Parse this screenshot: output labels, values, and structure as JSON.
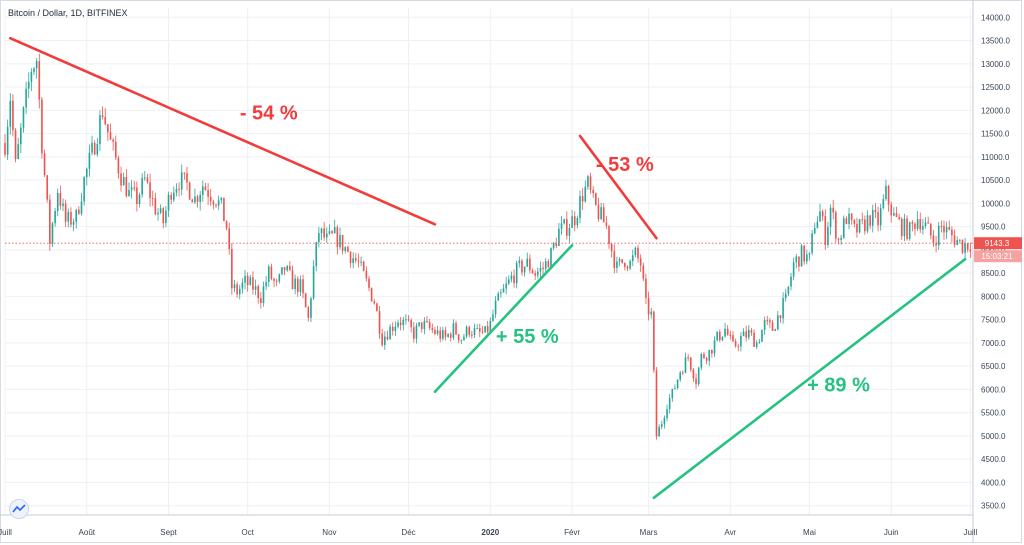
{
  "header": {
    "title": "Bitcoin / Dollar, 1D, BITFINEX"
  },
  "colors": {
    "up": "#26a69a",
    "down": "#ef5350",
    "decline": "#f23b3b",
    "rise": "#26c281",
    "axis": "#3b4656",
    "grid": "#eef0f3",
    "price_line": "#ef5350"
  },
  "price": {
    "last": "9143.3",
    "countdown": "15:03:21",
    "value": 9143.3
  },
  "icons": {
    "logo": "tradingview-logo-icon"
  },
  "chart_data": {
    "type": "candlestick",
    "title": "Bitcoin / Dollar, 1D, BITFINEX",
    "ylim": [
      3300,
      14200
    ],
    "yticks": [
      3500,
      4000,
      4500,
      5000,
      5500,
      6000,
      6500,
      7000,
      7500,
      8000,
      8500,
      9000,
      9500,
      10000,
      10500,
      11000,
      11500,
      12000,
      12500,
      13000,
      13500,
      14000
    ],
    "ytick_labels": [
      "3500.0",
      "4000.0",
      "4500.0",
      "5000.0",
      "5500.0",
      "6000.0",
      "6500.0",
      "7000.0",
      "7500.0",
      "8000.0",
      "8500.0",
      "9000.0",
      "9500.0",
      "10000.0",
      "10500.0",
      "11000.0",
      "11500.0",
      "12000.0",
      "12500.0",
      "13000.0",
      "13500.0",
      "14000.0"
    ],
    "xlim": [
      0,
      367
    ],
    "xticks": [
      {
        "label": "Juill",
        "day": 0,
        "bold": false
      },
      {
        "label": "Août",
        "day": 31,
        "bold": false
      },
      {
        "label": "Sept",
        "day": 62,
        "bold": false
      },
      {
        "label": "Oct",
        "day": 92,
        "bold": false
      },
      {
        "label": "Nov",
        "day": 123,
        "bold": false
      },
      {
        "label": "Déc",
        "day": 153,
        "bold": false
      },
      {
        "label": "2020",
        "day": 184,
        "bold": true
      },
      {
        "label": "Févr",
        "day": 215,
        "bold": false
      },
      {
        "label": "Mars",
        "day": 244,
        "bold": false
      },
      {
        "label": "Avr",
        "day": 275,
        "bold": false
      },
      {
        "label": "Mai",
        "day": 305,
        "bold": false
      },
      {
        "label": "Juin",
        "day": 336,
        "bold": false
      },
      {
        "label": "Juill",
        "day": 366,
        "bold": false
      }
    ],
    "anchors": [
      [
        0,
        11300
      ],
      [
        2,
        12300
      ],
      [
        4,
        10800
      ],
      [
        7,
        11900
      ],
      [
        10,
        12900
      ],
      [
        12,
        13100
      ],
      [
        14,
        11300
      ],
      [
        17,
        9200
      ],
      [
        20,
        10300
      ],
      [
        23,
        9600
      ],
      [
        27,
        9700
      ],
      [
        30,
        10500
      ],
      [
        34,
        11300
      ],
      [
        37,
        12000
      ],
      [
        40,
        11300
      ],
      [
        44,
        10600
      ],
      [
        47,
        10200
      ],
      [
        50,
        10100
      ],
      [
        53,
        10500
      ],
      [
        57,
        9900
      ],
      [
        60,
        9600
      ],
      [
        63,
        10300
      ],
      [
        66,
        10500
      ],
      [
        69,
        10400
      ],
      [
        72,
        10100
      ],
      [
        75,
        10400
      ],
      [
        78,
        10200
      ],
      [
        80,
        10100
      ],
      [
        82,
        9900
      ],
      [
        84,
        9500
      ],
      [
        86,
        8200
      ],
      [
        88,
        8100
      ],
      [
        91,
        8300
      ],
      [
        94,
        8200
      ],
      [
        97,
        8000
      ],
      [
        100,
        8500
      ],
      [
        103,
        8200
      ],
      [
        106,
        8600
      ],
      [
        109,
        8300
      ],
      [
        112,
        8200
      ],
      [
        115,
        7500
      ],
      [
        117,
        8600
      ],
      [
        119,
        9400
      ],
      [
        122,
        9200
      ],
      [
        125,
        9300
      ],
      [
        128,
        9100
      ],
      [
        131,
        8900
      ],
      [
        134,
        8700
      ],
      [
        137,
        8300
      ],
      [
        140,
        7900
      ],
      [
        143,
        7100
      ],
      [
        146,
        7300
      ],
      [
        149,
        7500
      ],
      [
        152,
        7400
      ],
      [
        155,
        7200
      ],
      [
        158,
        7400
      ],
      [
        161,
        7300
      ],
      [
        164,
        7200
      ],
      [
        167,
        7100
      ],
      [
        170,
        7300
      ],
      [
        173,
        7100
      ],
      [
        176,
        7300
      ],
      [
        179,
        7200
      ],
      [
        182,
        7200
      ],
      [
        184,
        7400
      ],
      [
        186,
        7800
      ],
      [
        189,
        8100
      ],
      [
        192,
        8400
      ],
      [
        195,
        8600
      ],
      [
        198,
        8700
      ],
      [
        201,
        8500
      ],
      [
        204,
        8600
      ],
      [
        207,
        8900
      ],
      [
        210,
        9400
      ],
      [
        213,
        9500
      ],
      [
        216,
        9700
      ],
      [
        219,
        10200
      ],
      [
        221,
        10400
      ],
      [
        223,
        10000
      ],
      [
        225,
        9800
      ],
      [
        228,
        9500
      ],
      [
        230,
        9000
      ],
      [
        232,
        8600
      ],
      [
        235,
        8800
      ],
      [
        237,
        8700
      ],
      [
        239,
        8900
      ],
      [
        241,
        8700
      ],
      [
        243,
        7800
      ],
      [
        245,
        7600
      ],
      [
        247,
        5000
      ],
      [
        249,
        5300
      ],
      [
        251,
        5700
      ],
      [
        253,
        5900
      ],
      [
        256,
        6400
      ],
      [
        259,
        6700
      ],
      [
        262,
        6200
      ],
      [
        264,
        6700
      ],
      [
        267,
        6800
      ],
      [
        270,
        7100
      ],
      [
        273,
        7300
      ],
      [
        276,
        6900
      ],
      [
        279,
        7100
      ],
      [
        282,
        7200
      ],
      [
        285,
        7000
      ],
      [
        288,
        7400
      ],
      [
        291,
        7300
      ],
      [
        294,
        7700
      ],
      [
        296,
        7900
      ],
      [
        299,
        8700
      ],
      [
        302,
        8900
      ],
      [
        305,
        8800
      ],
      [
        307,
        9600
      ],
      [
        309,
        9800
      ],
      [
        311,
        9300
      ],
      [
        313,
        9900
      ],
      [
        316,
        9200
      ],
      [
        319,
        9700
      ],
      [
        322,
        9400
      ],
      [
        325,
        9500
      ],
      [
        328,
        9700
      ],
      [
        331,
        9600
      ],
      [
        334,
        10200
      ],
      [
        337,
        9700
      ],
      [
        340,
        9500
      ],
      [
        343,
        9400
      ],
      [
        346,
        9700
      ],
      [
        349,
        9500
      ],
      [
        352,
        9200
      ],
      [
        355,
        9500
      ],
      [
        357,
        9400
      ],
      [
        359,
        9300
      ],
      [
        361,
        9200
      ],
      [
        363,
        9100
      ],
      [
        366,
        9143
      ]
    ],
    "annotations": [
      {
        "label": "- 54 %",
        "kind": "decline",
        "from": [
          2,
          13550
        ],
        "to": [
          163,
          9550
        ],
        "text_at": [
          100,
          11800
        ]
      },
      {
        "label": "- 53 %",
        "kind": "decline",
        "from": [
          218,
          11450
        ],
        "to": [
          247,
          9250
        ],
        "text_at": [
          235,
          10700
        ]
      },
      {
        "label": "+ 55 %",
        "kind": "rise",
        "from": [
          163,
          5950
        ],
        "to": [
          215,
          9100
        ],
        "text_at": [
          198,
          7000
        ]
      },
      {
        "label": "+ 89 %",
        "kind": "rise",
        "from": [
          246,
          3670
        ],
        "to": [
          364,
          8800
        ],
        "text_at": [
          316,
          5950
        ]
      }
    ]
  }
}
